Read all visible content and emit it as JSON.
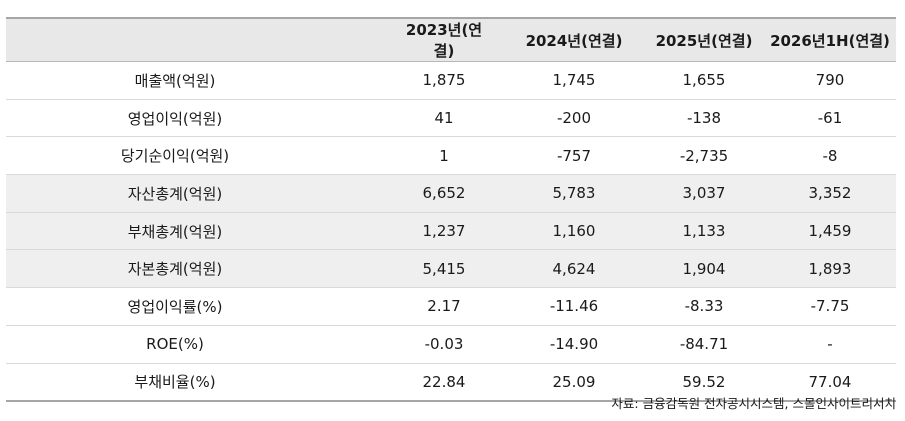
{
  "table": {
    "headers": [
      "",
      "2023년(연결)",
      "2024년(연결)",
      "2025년(연결)",
      "2026년1H(연결)"
    ],
    "rows": [
      {
        "label": "매출액(억원)",
        "values": [
          "1,875",
          "1,745",
          "1,655",
          "790"
        ]
      },
      {
        "label": "영업이익(억원)",
        "values": [
          "41",
          "-200",
          "-138",
          "-61"
        ]
      },
      {
        "label": "당기순이익(억원)",
        "values": [
          "1",
          "-757",
          "-2,735",
          "-8"
        ]
      },
      {
        "label": "자산총계(억원)",
        "values": [
          "6,652",
          "5,783",
          "3,037",
          "3,352"
        ]
      },
      {
        "label": "부채총계(억원)",
        "values": [
          "1,237",
          "1,160",
          "1,133",
          "1,459"
        ]
      },
      {
        "label": "자본총계(억원)",
        "values": [
          "5,415",
          "4,624",
          "1,904",
          "1,893"
        ]
      },
      {
        "label": "영업이익률(%)",
        "values": [
          "2.17",
          "-11.46",
          "-8.33",
          "-7.75"
        ]
      },
      {
        "label": "ROE(%)",
        "values": [
          "-0.03",
          "-14.90",
          "-84.71",
          "-"
        ]
      },
      {
        "label": "부채비율(%)",
        "values": [
          "22.84",
          "25.09",
          "59.52",
          "77.04"
        ]
      }
    ]
  },
  "source": "자료: 금융감독원 전자공시시스템, 스몰인사이트리서치"
}
